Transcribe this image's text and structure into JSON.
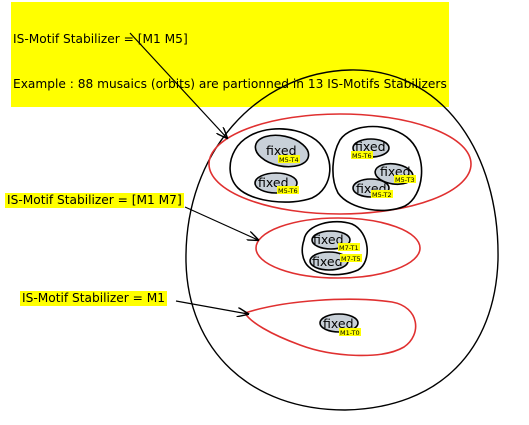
{
  "header": {
    "line1": "IS-Motif Stabilizer = [M1 M5]",
    "line2": "Example : 88 musaics (orbits) are partionned in 13 IS-Motifs Stabilizers"
  },
  "labels": {
    "m1m7": "IS-Motif Stabilizer = [M1 M7]",
    "m1": "IS-Motif Stabilizer = M1"
  },
  "fixed_word": "fixed",
  "tags": {
    "m5t4": "M5-T4",
    "m5t6a": "M5-T6",
    "m5t6b": "M5-T6",
    "m5t3": "M5-T3",
    "m5t2": "M5-T2",
    "m7t1": "M7-T1",
    "m7t5": "M7-T5",
    "m1t0": "M1-T0"
  },
  "colors": {
    "highlight": "#ffff00",
    "stabilizer_ring": "#e03030",
    "fixed_fill": "#c8d0d8",
    "outline": "#000000"
  }
}
